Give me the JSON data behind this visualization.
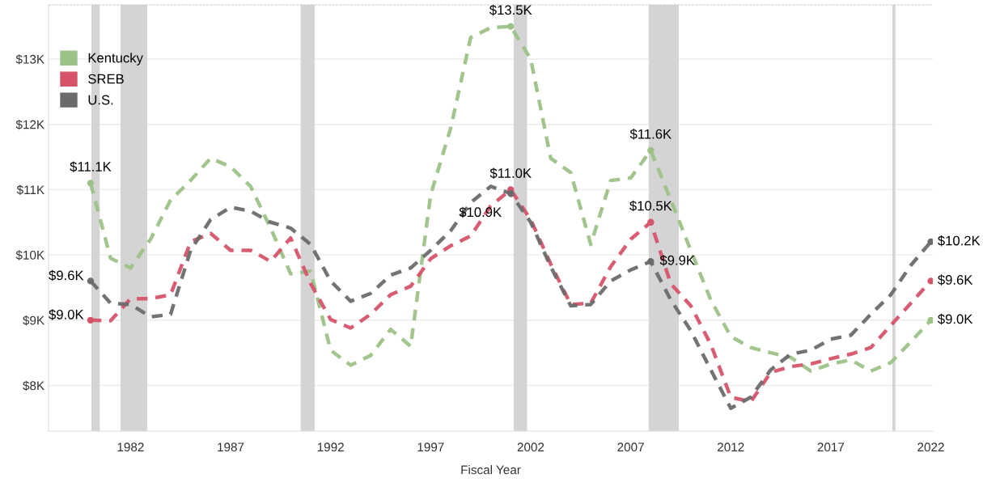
{
  "chart_data": {
    "type": "line",
    "xlabel": "Fiscal Year",
    "x": [
      1980,
      1981,
      1982,
      1983,
      1984,
      1985,
      1986,
      1987,
      1988,
      1989,
      1990,
      1991,
      1992,
      1993,
      1994,
      1995,
      1996,
      1997,
      1998,
      1999,
      2000,
      2001,
      2002,
      2003,
      2004,
      2005,
      2006,
      2007,
      2008,
      2009,
      2010,
      2011,
      2012,
      2013,
      2014,
      2015,
      2016,
      2017,
      2018,
      2019,
      2020,
      2021,
      2022
    ],
    "series": [
      {
        "name": "Kentucky",
        "color": "#9dc287",
        "values": [
          11.1,
          9.95,
          9.8,
          10.24,
          10.84,
          11.14,
          11.48,
          11.35,
          11.05,
          10.41,
          9.71,
          9.75,
          8.54,
          8.31,
          8.46,
          8.86,
          8.6,
          10.92,
          11.94,
          13.33,
          13.48,
          13.5,
          13.0,
          11.48,
          11.26,
          10.16,
          11.14,
          11.18,
          11.6,
          10.84,
          10.07,
          9.31,
          8.75,
          8.58,
          8.5,
          8.43,
          8.22,
          8.33,
          8.39,
          8.22,
          8.35,
          8.67,
          9.0
        ],
        "value_labels": [
          "$11.1K",
          null,
          null,
          null,
          null,
          null,
          null,
          null,
          null,
          null,
          null,
          null,
          null,
          null,
          null,
          null,
          null,
          null,
          null,
          null,
          null,
          "$13.5K",
          null,
          null,
          null,
          null,
          null,
          null,
          "$11.6K",
          null,
          null,
          null,
          null,
          null,
          null,
          null,
          null,
          null,
          null,
          null,
          null,
          null,
          "$9.0K"
        ]
      },
      {
        "name": "SREB",
        "color": "#d6546a",
        "values": [
          9.0,
          8.99,
          9.33,
          9.33,
          9.39,
          10.2,
          10.33,
          10.07,
          10.07,
          9.9,
          10.26,
          9.56,
          9.01,
          8.88,
          9.09,
          9.39,
          9.52,
          9.94,
          10.14,
          10.29,
          10.75,
          11.0,
          10.54,
          9.86,
          9.24,
          9.26,
          9.82,
          10.24,
          10.5,
          9.56,
          9.22,
          8.63,
          7.82,
          7.75,
          8.2,
          8.29,
          8.33,
          8.41,
          8.48,
          8.58,
          8.92,
          9.26,
          9.6
        ],
        "value_labels": [
          "$9.0K",
          null,
          null,
          null,
          null,
          null,
          null,
          null,
          null,
          null,
          null,
          null,
          null,
          null,
          null,
          null,
          null,
          null,
          null,
          null,
          null,
          "$11.0K",
          null,
          null,
          null,
          null,
          null,
          null,
          "$10.5K",
          null,
          null,
          null,
          null,
          null,
          null,
          null,
          null,
          null,
          null,
          null,
          null,
          null,
          "$9.6K"
        ]
      },
      {
        "name": "U.S.",
        "color": "#6b6b6b",
        "values": [
          9.6,
          9.26,
          9.24,
          9.05,
          9.09,
          10.07,
          10.54,
          10.73,
          10.67,
          10.5,
          10.41,
          10.16,
          9.6,
          9.29,
          9.41,
          9.69,
          9.8,
          10.07,
          10.37,
          10.8,
          11.05,
          10.94,
          10.5,
          9.82,
          9.22,
          9.24,
          9.6,
          9.77,
          9.9,
          9.31,
          8.84,
          8.24,
          7.65,
          7.82,
          8.24,
          8.48,
          8.54,
          8.71,
          8.77,
          9.09,
          9.39,
          9.84,
          10.2
        ],
        "value_labels": [
          "$9.6K",
          null,
          null,
          null,
          null,
          null,
          null,
          null,
          null,
          null,
          null,
          null,
          null,
          null,
          null,
          null,
          null,
          null,
          null,
          null,
          null,
          "$10.9K",
          null,
          null,
          null,
          null,
          null,
          null,
          "$9.9K",
          null,
          null,
          null,
          null,
          null,
          null,
          null,
          null,
          null,
          null,
          null,
          null,
          null,
          "$10.2K"
        ]
      }
    ],
    "bands": [
      {
        "axis": "x",
        "from": 1980.04,
        "to": 1980.46,
        "color": "#d4d4d4"
      },
      {
        "axis": "x",
        "from": 1981.5,
        "to": 1982.83,
        "color": "#d4d4d4"
      },
      {
        "axis": "x",
        "from": 1990.5,
        "to": 1991.2,
        "color": "#d4d4d4"
      },
      {
        "axis": "x",
        "from": 2001.15,
        "to": 2001.82,
        "color": "#d4d4d4"
      },
      {
        "axis": "x",
        "from": 2007.9,
        "to": 2009.4,
        "color": "#d4d4d4"
      },
      {
        "axis": "x",
        "from": 2020.08,
        "to": 2020.23,
        "color": "#d4d4d4"
      }
    ],
    "xlim": [
      1977.9,
      2022.1
    ],
    "xticks": [
      1982,
      1987,
      1992,
      1997,
      2002,
      2007,
      2012,
      2017,
      2022
    ],
    "ylim": [
      7.3,
      13.83
    ],
    "yticks": [
      {
        "value": 8,
        "label": "$8K"
      },
      {
        "value": 9,
        "label": "$9K"
      },
      {
        "value": 10,
        "label": "$10K"
      },
      {
        "value": 11,
        "label": "$11K"
      },
      {
        "value": 12,
        "label": "$12K"
      },
      {
        "value": 13,
        "label": "$13K"
      }
    ],
    "grid": "y",
    "legend": "top left",
    "line_style": "dashed",
    "marker": "none"
  }
}
